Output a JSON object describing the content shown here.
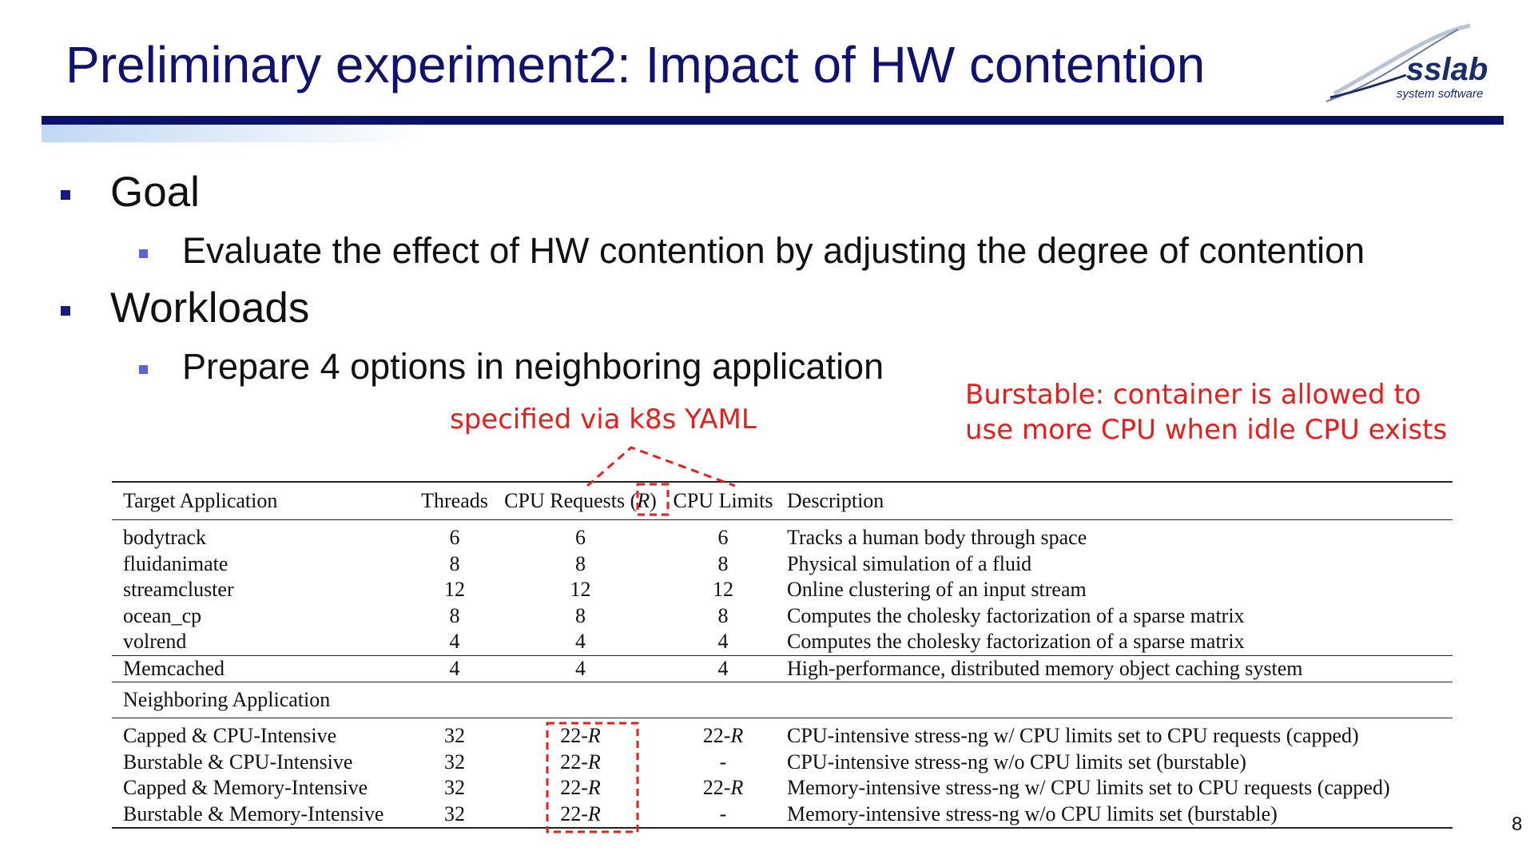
{
  "slide": {
    "title": "Preliminary experiment2: Impact of HW contention",
    "page_number": "8"
  },
  "logo": {
    "text": "sslab",
    "subtext": "system software"
  },
  "bullets": [
    {
      "text": "Goal",
      "sub": [
        "Evaluate the effect of HW contention by adjusting the degree of contention"
      ]
    },
    {
      "text": "Workloads",
      "sub": [
        "Prepare 4 options in neighboring application"
      ]
    }
  ],
  "annotations": {
    "yaml_note": "specified via k8s YAML",
    "burstable_line1": "Burstable: container is allowed to",
    "burstable_line2": "use more CPU when idle CPU exists",
    "color": "#e2201c"
  },
  "table": {
    "headers": [
      "Target Application",
      "Threads",
      "CPU Requests (",
      "R",
      ")",
      "CPU Limits",
      "Description"
    ],
    "target_rows": [
      [
        "bodytrack",
        "6",
        "6",
        "6",
        "Tracks a human body through space"
      ],
      [
        "fluidanimate",
        "8",
        "8",
        "8",
        "Physical simulation of a fluid"
      ],
      [
        "streamcluster",
        "12",
        "12",
        "12",
        "Online clustering of an input stream"
      ],
      [
        "ocean_cp",
        "8",
        "8",
        "8",
        "Computes the cholesky factorization of a sparse matrix"
      ],
      [
        "volrend",
        "4",
        "4",
        "4",
        "Computes the cholesky factorization of a sparse matrix"
      ]
    ],
    "memcached_row": [
      "Memcached",
      "4",
      "4",
      "4",
      "High-performance, distributed memory object caching system"
    ],
    "neighbor_header": "Neighboring Application",
    "neighbor_rows": [
      [
        "Capped & CPU-Intensive",
        "32",
        "22-",
        "R",
        "22-",
        "R",
        "CPU-intensive stress-ng w/ CPU limits set to CPU requests (capped)"
      ],
      [
        "Burstable & CPU-Intensive",
        "32",
        "22-",
        "R",
        "-",
        "",
        "CPU-intensive stress-ng w/o CPU limits set (burstable)"
      ],
      [
        "Capped & Memory-Intensive",
        "32",
        "22-",
        "R",
        "22-",
        "R",
        "Memory-intensive stress-ng w/ CPU limits set to CPU requests (capped)"
      ],
      [
        "Burstable & Memory-Intensive",
        "32",
        "22-",
        "R",
        "-",
        "",
        "Memory-intensive stress-ng w/o CPU limits set (burstable)"
      ]
    ]
  }
}
